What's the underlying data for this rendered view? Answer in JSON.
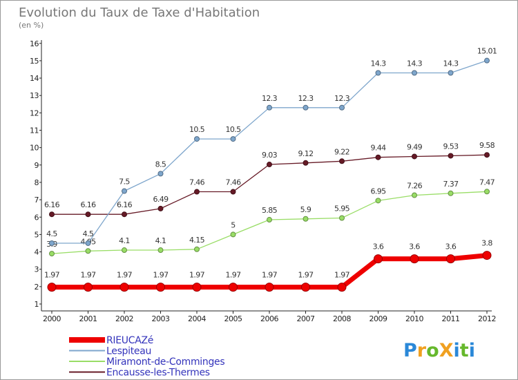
{
  "chart_data": {
    "type": "line",
    "title": "Evolution du Taux de Taxe d'Habitation",
    "subtitle": "(en %)",
    "x": [
      "2000",
      "2001",
      "2002",
      "2003",
      "2004",
      "2005",
      "2006",
      "2007",
      "2008",
      "2009",
      "2010",
      "2011",
      "2012"
    ],
    "ylim": [
      1,
      16
    ],
    "yticks": [
      1,
      2,
      3,
      4,
      5,
      6,
      7,
      8,
      9,
      10,
      11,
      12,
      13,
      14,
      15,
      16
    ],
    "grid": false,
    "legend_position": "bottom-left",
    "series": [
      {
        "name": "Encausse-les-Thermes",
        "color": "#661a26",
        "width": 1.3,
        "values": [
          6.16,
          6.16,
          6.16,
          6.49,
          7.46,
          7.46,
          9.03,
          9.12,
          9.22,
          9.44,
          9.49,
          9.53,
          9.58
        ],
        "labels": [
          "6.16",
          "6.16",
          "6.16",
          "6.49",
          "7.46",
          "7.46",
          "9.03",
          "9.12",
          "9.22",
          "9.44",
          "9.49",
          "9.53",
          "9.58"
        ]
      },
      {
        "name": "Miramont-de-Comminges",
        "color": "#99dd66",
        "width": 1.3,
        "values": [
          3.9,
          4.05,
          4.1,
          4.1,
          4.15,
          5,
          5.85,
          5.9,
          5.95,
          6.95,
          7.26,
          7.37,
          7.47
        ],
        "labels": [
          "3.9",
          "4.05",
          "4.1",
          "4.1",
          "4.15",
          "5",
          "5.85",
          "5.9",
          "5.95",
          "6.95",
          "7.26",
          "7.37",
          "7.47"
        ]
      },
      {
        "name": "Lespiteau",
        "color": "#7ea6cc",
        "width": 1.3,
        "values": [
          4.5,
          4.5,
          7.5,
          8.5,
          10.5,
          10.5,
          12.3,
          12.3,
          12.3,
          14.3,
          14.3,
          14.3,
          15.01
        ],
        "labels": [
          "4.5",
          "4.5",
          "7.5",
          "8.5",
          "10.5",
          "10.5",
          "12.3",
          "12.3",
          "12.3",
          "14.3",
          "14.3",
          "14.3",
          "15.01"
        ]
      },
      {
        "name": "RIEUCAZé",
        "color": "#ee0000",
        "width": 7,
        "values": [
          1.97,
          1.97,
          1.97,
          1.97,
          1.97,
          1.97,
          1.97,
          1.97,
          1.97,
          3.6,
          3.6,
          3.6,
          3.8
        ],
        "labels": [
          "1.97",
          "1.97",
          "1.97",
          "1.97",
          "1.97",
          "1.97",
          "1.97",
          "1.97",
          "1.97",
          "3.6",
          "3.6",
          "3.6",
          "3.8"
        ]
      }
    ],
    "legend_order": [
      "RIEUCAZé",
      "Lespiteau",
      "Miramont-de-Comminges",
      "Encausse-les-Thermes"
    ]
  },
  "logo_text": "ProXiti",
  "colors": {
    "axis": "#222222",
    "border": "#999999",
    "title": "#777777",
    "legend_text": "#3333bb"
  }
}
